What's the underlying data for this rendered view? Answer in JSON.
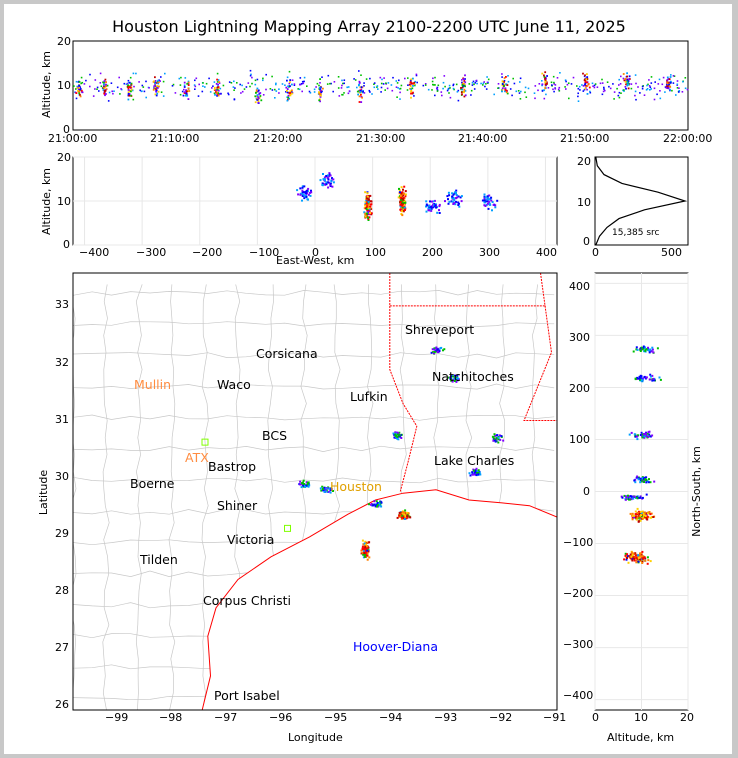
{
  "title": "Houston Lightning Mapping Array 2100-2200 UTC June 11, 2025",
  "colors": {
    "frame_bg": "#c8c8c8",
    "state_border": "#ff0000",
    "county_border": "#c8c8c8",
    "density_low": "#8000ff",
    "density_high": "#c00000"
  },
  "panels": {
    "time_height": {
      "ylabel": "Altitude, km",
      "yticks": [
        "0",
        "10",
        "20"
      ],
      "xticks": [
        "21:00:00",
        "21:10:00",
        "21:20:00",
        "21:30:00",
        "21:40:00",
        "21:50:00",
        "22:00:00"
      ]
    },
    "ew_height": {
      "ylabel": "Altitude, km",
      "xlabel": "East-West, km",
      "yticks": [
        "0",
        "10",
        "20"
      ],
      "xticks": [
        "−400",
        "−300",
        "−200",
        "−100",
        "0",
        "100",
        "200",
        "300",
        "400"
      ]
    },
    "histogram": {
      "annotation": "15,385 src",
      "yticks": [
        "0",
        "10",
        "20"
      ],
      "xticks": [
        "0",
        "500"
      ]
    },
    "map": {
      "xlabel": "Longitude",
      "ylabel": "Latitude",
      "xticks": [
        "−99",
        "−98",
        "−97",
        "−96",
        "−95",
        "−94",
        "−93",
        "−92",
        "−91"
      ],
      "yticks": [
        "26",
        "27",
        "28",
        "29",
        "30",
        "31",
        "32",
        "33"
      ]
    },
    "ns_height": {
      "ylabel": "North-South, km",
      "xlabel": "Altitude, km",
      "yticks": [
        "−400",
        "−300",
        "−200",
        "−100",
        "0",
        "100",
        "200",
        "300",
        "400"
      ],
      "xticks": [
        "0",
        "10",
        "20"
      ]
    }
  },
  "cities": [
    {
      "name": "Shreveport",
      "color": "#000000"
    },
    {
      "name": "Corsicana",
      "color": "#000000"
    },
    {
      "name": "Mullin",
      "color": "#ff8c40"
    },
    {
      "name": "Waco",
      "color": "#000000"
    },
    {
      "name": "Lufkin",
      "color": "#000000"
    },
    {
      "name": "Natchitoches",
      "color": "#000000"
    },
    {
      "name": "BCS",
      "color": "#000000"
    },
    {
      "name": "ATX",
      "color": "#ff8c40"
    },
    {
      "name": "Bastrop",
      "color": "#000000"
    },
    {
      "name": "Lake Charles",
      "color": "#000000"
    },
    {
      "name": "Boerne",
      "color": "#000000"
    },
    {
      "name": "Houston",
      "color": "#e0a000"
    },
    {
      "name": "Shiner",
      "color": "#000000"
    },
    {
      "name": "Victoria",
      "color": "#000000"
    },
    {
      "name": "Tilden",
      "color": "#000000"
    },
    {
      "name": "Corpus Christi",
      "color": "#000000"
    },
    {
      "name": "Hoover-Diana",
      "color": "#0000ff"
    },
    {
      "name": "Port Isabel",
      "color": "#000000"
    }
  ],
  "chart_data": [
    {
      "type": "scatter",
      "title": "Houston Lightning Mapping Array 2100-2200 UTC June 11, 2025",
      "ylabel": "Altitude, km",
      "xlabel": "",
      "xlim": [
        "21:00:00",
        "22:00:00"
      ],
      "ylim": [
        0,
        20
      ],
      "grid": false,
      "series": [
        {
          "values": [
            {
              "x": "21:00:30",
              "y": 9
            },
            {
              "x": "21:03:00",
              "y": 10
            },
            {
              "x": "21:05:30",
              "y": 9
            },
            {
              "x": "21:08:00",
              "y": 10
            },
            {
              "x": "21:11:00",
              "y": 9
            },
            {
              "x": "21:14:00",
              "y": 9
            },
            {
              "x": "21:18:00",
              "y": 8
            },
            {
              "x": "21:21:00",
              "y": 9
            },
            {
              "x": "21:24:00",
              "y": 9
            },
            {
              "x": "21:28:00",
              "y": 9
            },
            {
              "x": "21:33:00",
              "y": 10
            },
            {
              "x": "21:38:00",
              "y": 10
            },
            {
              "x": "21:42:00",
              "y": 10
            },
            {
              "x": "21:46:00",
              "y": 11
            },
            {
              "x": "21:50:00",
              "y": 11
            },
            {
              "x": "21:54:00",
              "y": 11
            },
            {
              "x": "21:58:00",
              "y": 11
            }
          ]
        }
      ]
    },
    {
      "type": "scatter",
      "xlabel": "East-West, km",
      "ylabel": "Altitude, km",
      "xlim": [
        -420,
        420
      ],
      "ylim": [
        0,
        20
      ],
      "grid": true,
      "series": [
        {
          "values": [
            {
              "x": 90,
              "y": 9
            },
            {
              "x": 150,
              "y": 10
            },
            {
              "x": 200,
              "y": 9
            },
            {
              "x": 240,
              "y": 11
            },
            {
              "x": 300,
              "y": 10
            },
            {
              "x": 20,
              "y": 15
            },
            {
              "x": -20,
              "y": 12
            }
          ]
        }
      ]
    },
    {
      "type": "line",
      "xlabel": "",
      "ylabel": "",
      "xlim": [
        0,
        620
      ],
      "ylim": [
        0,
        20
      ],
      "annotations": [
        "15,385 src"
      ],
      "series": [
        {
          "values": [
            {
              "x": 5,
              "y": 0
            },
            {
              "x": 30,
              "y": 2
            },
            {
              "x": 80,
              "y": 4
            },
            {
              "x": 160,
              "y": 6
            },
            {
              "x": 330,
              "y": 8
            },
            {
              "x": 600,
              "y": 10
            },
            {
              "x": 420,
              "y": 12
            },
            {
              "x": 180,
              "y": 14
            },
            {
              "x": 60,
              "y": 16
            },
            {
              "x": 15,
              "y": 18
            },
            {
              "x": 5,
              "y": 20
            }
          ]
        }
      ]
    },
    {
      "type": "scatter",
      "xlabel": "Longitude",
      "ylabel": "Latitude",
      "xlim": [
        -99.8,
        -91
      ],
      "ylim": [
        25.9,
        33.6
      ],
      "grid": false,
      "series": [
        {
          "values": [
            {
              "x": -93.8,
              "y": 29.35
            },
            {
              "x": -94.5,
              "y": 28.75
            },
            {
              "x": -94.3,
              "y": 29.55
            },
            {
              "x": -92.9,
              "y": 31.75
            },
            {
              "x": -93.2,
              "y": 32.25
            },
            {
              "x": -92.5,
              "y": 30.1
            },
            {
              "x": -93.9,
              "y": 30.75
            },
            {
              "x": -92.1,
              "y": 30.7
            },
            {
              "x": -95.6,
              "y": 29.9
            },
            {
              "x": -95.2,
              "y": 29.8
            }
          ]
        }
      ]
    },
    {
      "type": "scatter",
      "xlabel": "Altitude, km",
      "ylabel": "North-South, km",
      "xlim": [
        0,
        20
      ],
      "ylim": [
        -420,
        420
      ],
      "grid": true,
      "series": [
        {
          "values": [
            {
              "x": 10,
              "y": -45
            },
            {
              "x": 9,
              "y": -125
            },
            {
              "x": 10,
              "y": 25
            },
            {
              "x": 11,
              "y": 220
            },
            {
              "x": 10,
              "y": 110
            },
            {
              "x": 10,
              "y": 275
            },
            {
              "x": 8,
              "y": -10
            }
          ]
        }
      ]
    }
  ]
}
